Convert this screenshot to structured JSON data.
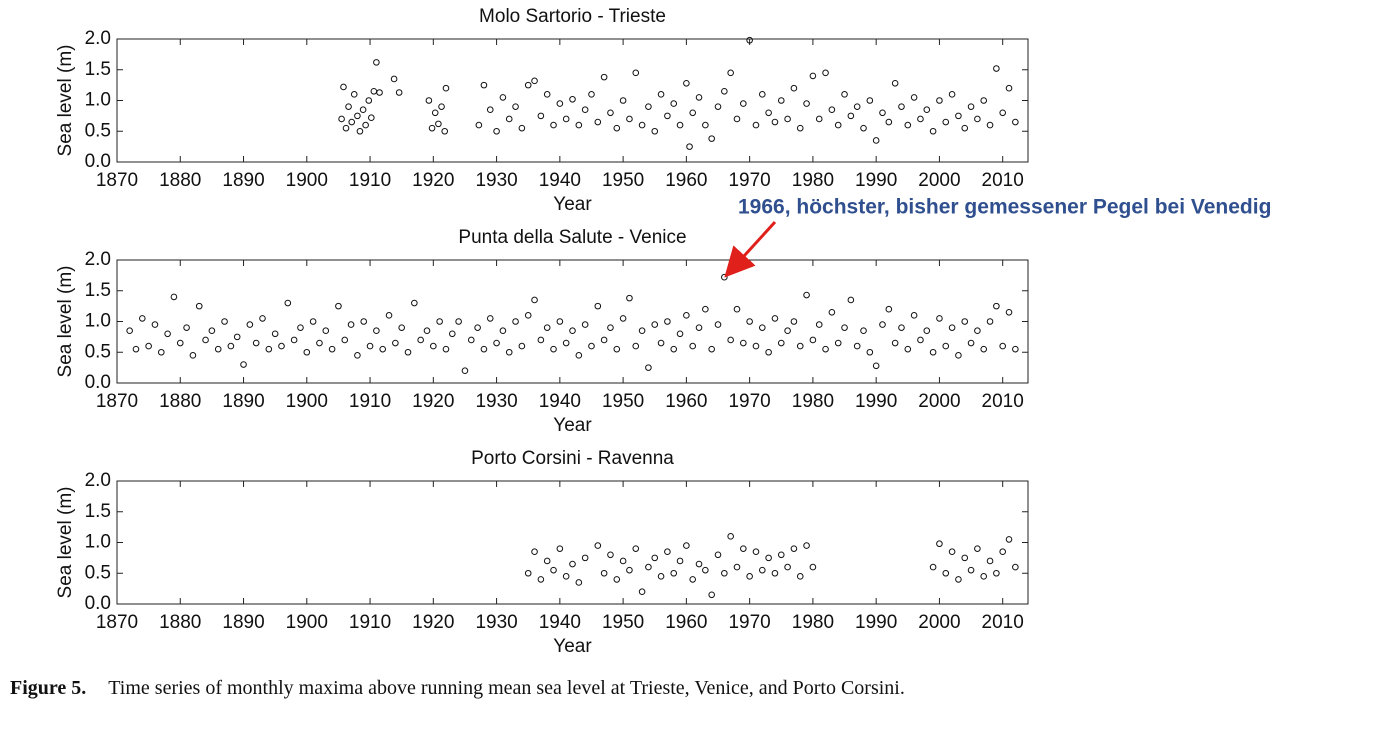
{
  "chart_data": [
    {
      "type": "scatter",
      "title": "Molo Sartorio - Trieste",
      "xlabel": "Year",
      "ylabel": "Sea level (m)",
      "xlim": [
        1870,
        2014
      ],
      "ylim": [
        0,
        2
      ],
      "xticks": [
        1870,
        1880,
        1890,
        1900,
        1910,
        1920,
        1930,
        1940,
        1950,
        1960,
        1970,
        1980,
        1990,
        2000,
        2010
      ],
      "yticks": [
        {
          "value": 0,
          "label": "0.0"
        },
        {
          "value": 0.5,
          "label": "0.5"
        },
        {
          "value": 1,
          "label": "1.0"
        },
        {
          "value": 1.5,
          "label": "1.5"
        },
        {
          "value": 2,
          "label": "2.0"
        }
      ],
      "x": [
        1905.5,
        1905.8,
        1906.2,
        1906.6,
        1907.1,
        1907.5,
        1908,
        1908.4,
        1908.9,
        1909.3,
        1909.8,
        1910.2,
        1910.6,
        1911,
        1911.5,
        1913.8,
        1914.6,
        1919.3,
        1919.8,
        1920.3,
        1920.8,
        1921.3,
        1921.8,
        1922,
        1927.2,
        1928,
        1929,
        1930,
        1931,
        1932,
        1933,
        1934,
        1935,
        1936,
        1937,
        1938,
        1939,
        1940,
        1941,
        1942,
        1943,
        1944,
        1945,
        1946,
        1947,
        1948,
        1949,
        1950,
        1951,
        1952,
        1953,
        1954,
        1955,
        1956,
        1957,
        1958,
        1959,
        1960,
        1960.5,
        1961,
        1962,
        1963,
        1964,
        1965,
        1966,
        1967,
        1968,
        1969,
        1970,
        1971,
        1972,
        1973,
        1974,
        1975,
        1976,
        1977,
        1978,
        1979,
        1980,
        1981,
        1982,
        1983,
        1984,
        1985,
        1986,
        1987,
        1988,
        1989,
        1990,
        1991,
        1992,
        1993,
        1994,
        1995,
        1996,
        1997,
        1998,
        1999,
        2000,
        2001,
        2002,
        2003,
        2004,
        2005,
        2006,
        2007,
        2008,
        2009,
        2010,
        2011,
        2012
      ],
      "values": [
        0.7,
        1.22,
        0.55,
        0.9,
        0.65,
        1.1,
        0.75,
        0.5,
        0.85,
        0.6,
        1.0,
        0.72,
        1.15,
        1.62,
        1.13,
        1.35,
        1.13,
        1.0,
        0.55,
        0.8,
        0.62,
        0.9,
        0.5,
        1.2,
        0.6,
        1.25,
        0.85,
        0.5,
        1.05,
        0.7,
        0.9,
        0.55,
        1.25,
        1.32,
        0.75,
        1.1,
        0.6,
        0.95,
        0.7,
        1.02,
        0.6,
        0.85,
        1.1,
        0.65,
        1.38,
        0.8,
        0.55,
        1.0,
        0.7,
        1.45,
        0.6,
        0.9,
        0.5,
        1.1,
        0.75,
        0.95,
        0.6,
        1.28,
        0.25,
        0.8,
        1.05,
        0.6,
        0.38,
        0.9,
        1.15,
        1.45,
        0.7,
        0.95,
        1.98,
        0.6,
        1.1,
        0.8,
        0.65,
        1.0,
        0.7,
        1.2,
        0.55,
        0.95,
        1.4,
        0.7,
        1.45,
        0.85,
        0.6,
        1.1,
        0.75,
        0.9,
        0.55,
        1.0,
        0.35,
        0.8,
        0.65,
        1.28,
        0.9,
        0.6,
        1.05,
        0.7,
        0.85,
        0.5,
        1.0,
        0.65,
        1.1,
        0.75,
        0.55,
        0.9,
        0.7,
        1.0,
        0.6,
        1.52,
        0.8,
        1.2,
        0.65
      ]
    },
    {
      "type": "scatter",
      "title": "Punta della Salute - Venice",
      "xlabel": "Year",
      "ylabel": "Sea level (m)",
      "annotation": "1966, höchster, bisher gemessener Pegel bei Venedig",
      "xlim": [
        1870,
        2014
      ],
      "ylim": [
        0,
        2
      ],
      "xticks": [
        1870,
        1880,
        1890,
        1900,
        1910,
        1920,
        1930,
        1940,
        1950,
        1960,
        1970,
        1980,
        1990,
        2000,
        2010
      ],
      "yticks": [
        {
          "value": 0,
          "label": "0.0"
        },
        {
          "value": 0.5,
          "label": "0.5"
        },
        {
          "value": 1,
          "label": "1.0"
        },
        {
          "value": 1.5,
          "label": "1.5"
        },
        {
          "value": 2,
          "label": "2.0"
        }
      ],
      "x": [
        1872,
        1873,
        1874,
        1875,
        1876,
        1877,
        1878,
        1879,
        1880,
        1881,
        1882,
        1883,
        1884,
        1885,
        1886,
        1887,
        1888,
        1889,
        1890,
        1891,
        1892,
        1893,
        1894,
        1895,
        1896,
        1897,
        1898,
        1899,
        1900,
        1901,
        1902,
        1903,
        1904,
        1905,
        1906,
        1907,
        1908,
        1909,
        1910,
        1911,
        1912,
        1913,
        1914,
        1915,
        1916,
        1917,
        1918,
        1919,
        1920,
        1921,
        1922,
        1923,
        1924,
        1925,
        1926,
        1927,
        1928,
        1929,
        1930,
        1931,
        1932,
        1933,
        1934,
        1935,
        1936,
        1937,
        1938,
        1939,
        1940,
        1941,
        1942,
        1943,
        1944,
        1945,
        1946,
        1947,
        1948,
        1949,
        1950,
        1951,
        1952,
        1953,
        1954,
        1955,
        1956,
        1957,
        1958,
        1959,
        1960,
        1961,
        1962,
        1963,
        1964,
        1965,
        1966,
        1967,
        1968,
        1969,
        1970,
        1971,
        1972,
        1973,
        1974,
        1975,
        1976,
        1977,
        1978,
        1979,
        1980,
        1981,
        1982,
        1983,
        1984,
        1985,
        1986,
        1987,
        1988,
        1989,
        1990,
        1991,
        1992,
        1993,
        1994,
        1995,
        1996,
        1997,
        1998,
        1999,
        2000,
        2001,
        2002,
        2003,
        2004,
        2005,
        2006,
        2007,
        2008,
        2009,
        2010,
        2011,
        2012
      ],
      "values": [
        0.85,
        0.55,
        1.05,
        0.6,
        0.95,
        0.5,
        0.8,
        1.4,
        0.65,
        0.9,
        0.45,
        1.25,
        0.7,
        0.85,
        0.55,
        1.0,
        0.6,
        0.75,
        0.3,
        0.95,
        0.65,
        1.05,
        0.55,
        0.8,
        0.6,
        1.3,
        0.7,
        0.9,
        0.5,
        1.0,
        0.65,
        0.85,
        0.55,
        1.25,
        0.7,
        0.95,
        0.45,
        1.0,
        0.6,
        0.85,
        0.55,
        1.1,
        0.65,
        0.9,
        0.5,
        1.3,
        0.7,
        0.85,
        0.6,
        1.0,
        0.55,
        0.8,
        1.0,
        0.2,
        0.7,
        0.9,
        0.55,
        1.05,
        0.65,
        0.85,
        0.5,
        1.0,
        0.6,
        1.1,
        1.35,
        0.7,
        0.9,
        0.55,
        1.0,
        0.65,
        0.85,
        0.45,
        0.95,
        0.6,
        1.25,
        0.7,
        0.9,
        0.55,
        1.05,
        1.38,
        0.6,
        0.85,
        0.25,
        0.95,
        0.65,
        1.0,
        0.55,
        0.8,
        1.1,
        0.6,
        0.9,
        1.2,
        0.55,
        0.95,
        1.72,
        0.7,
        1.2,
        0.65,
        1.0,
        0.6,
        0.9,
        0.5,
        1.05,
        0.65,
        0.85,
        1.0,
        0.6,
        1.43,
        0.7,
        0.95,
        0.55,
        1.15,
        0.65,
        0.9,
        1.35,
        0.6,
        0.85,
        0.5,
        0.28,
        0.95,
        1.2,
        0.65,
        0.9,
        0.55,
        1.1,
        0.7,
        0.85,
        0.5,
        1.05,
        0.6,
        0.9,
        0.45,
        1.0,
        0.65,
        0.85,
        0.55,
        1.0,
        1.25,
        0.6,
        1.15,
        0.55
      ]
    },
    {
      "type": "scatter",
      "title": "Porto Corsini - Ravenna",
      "xlabel": "Year",
      "ylabel": "Sea level (m)",
      "xlim": [
        1870,
        2014
      ],
      "ylim": [
        0,
        2
      ],
      "xticks": [
        1870,
        1880,
        1890,
        1900,
        1910,
        1920,
        1930,
        1940,
        1950,
        1960,
        1970,
        1980,
        1990,
        2000,
        2010
      ],
      "yticks": [
        {
          "value": 0,
          "label": "0.0"
        },
        {
          "value": 0.5,
          "label": "0.5"
        },
        {
          "value": 1,
          "label": "1.0"
        },
        {
          "value": 1.5,
          "label": "1.5"
        },
        {
          "value": 2,
          "label": "2.0"
        }
      ],
      "x": [
        1935,
        1936,
        1937,
        1938,
        1939,
        1940,
        1941,
        1942,
        1943,
        1944,
        1946,
        1947,
        1948,
        1949,
        1950,
        1951,
        1952,
        1953,
        1954,
        1955,
        1956,
        1957,
        1958,
        1959,
        1960,
        1961,
        1962,
        1963,
        1964,
        1965,
        1966,
        1967,
        1968,
        1969,
        1970,
        1971,
        1972,
        1973,
        1974,
        1975,
        1976,
        1977,
        1978,
        1979,
        1980,
        1999,
        2000,
        2001,
        2002,
        2003,
        2004,
        2005,
        2006,
        2007,
        2008,
        2009,
        2010,
        2011,
        2012
      ],
      "values": [
        0.5,
        0.85,
        0.4,
        0.7,
        0.55,
        0.9,
        0.45,
        0.65,
        0.35,
        0.75,
        0.95,
        0.5,
        0.8,
        0.4,
        0.7,
        0.55,
        0.9,
        0.2,
        0.6,
        0.75,
        0.45,
        0.85,
        0.5,
        0.7,
        0.95,
        0.4,
        0.65,
        0.55,
        0.15,
        0.8,
        0.5,
        1.1,
        0.6,
        0.9,
        0.45,
        0.85,
        0.55,
        0.75,
        0.5,
        0.8,
        0.6,
        0.9,
        0.45,
        0.95,
        0.6,
        0.6,
        0.98,
        0.5,
        0.85,
        0.4,
        0.75,
        0.55,
        0.9,
        0.45,
        0.7,
        0.5,
        0.85,
        1.05,
        0.6
      ]
    }
  ],
  "caption": {
    "label": "Figure 5.",
    "text": "Time series of monthly maxima above running mean sea level at Trieste, Venice, and Porto Corsini."
  }
}
